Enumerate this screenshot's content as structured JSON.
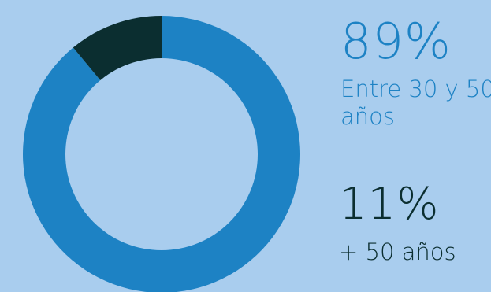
{
  "chart_data": {
    "type": "pie",
    "variant": "donut",
    "slices": [
      {
        "label": "Entre 30 y 50 años",
        "value": 89,
        "value_label": "89%",
        "color": "#1d82c4"
      },
      {
        "label": "+ 50 años",
        "value": 11,
        "value_label": "11%",
        "color": "#0b2e30"
      }
    ]
  },
  "colors": {
    "background": "#a9cdee",
    "hole": "#a9cdee",
    "primary_text": "#1d82c4",
    "secondary_text": "#0b2e30"
  }
}
